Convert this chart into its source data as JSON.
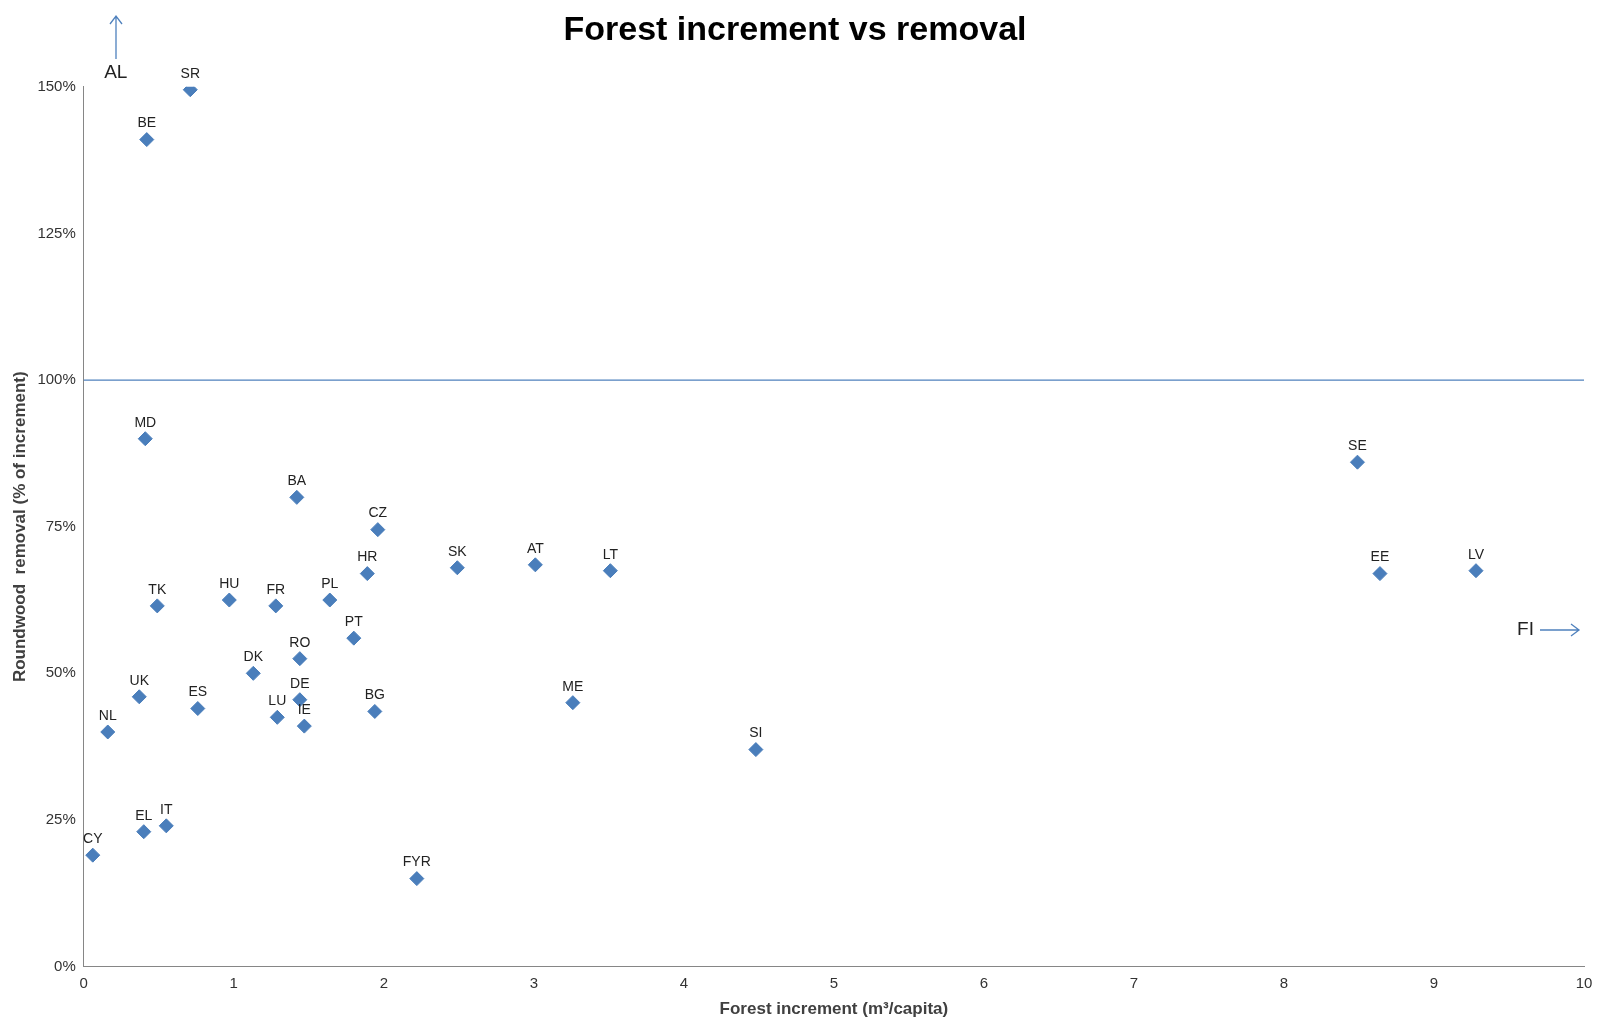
{
  "chart_data": {
    "type": "scatter",
    "title": "Forest increment vs removal",
    "xlabel": "Forest increment (m³/capita)",
    "ylabel": "Roundwood  removal (% of increment)",
    "series": [
      {
        "color": "#4a7ebb",
        "x": [
          0.71,
          0.42,
          0.41,
          1.42,
          1.96,
          1.89,
          2.49,
          3.01,
          3.51,
          0.49,
          0.97,
          1.28,
          1.64,
          1.8,
          1.44,
          1.13,
          1.44,
          0.37,
          0.76,
          1.29,
          1.47,
          1.94,
          0.16,
          3.26,
          4.48,
          0.4,
          0.55,
          0.06,
          2.22,
          8.49,
          8.64,
          9.28
        ],
        "values": [
          149.5,
          141,
          90,
          80,
          74.5,
          67,
          68,
          68.5,
          67.5,
          61.5,
          62.5,
          61.5,
          62.5,
          56,
          52.5,
          50,
          45.5,
          46,
          44,
          42.5,
          41,
          43.5,
          40,
          45,
          37,
          23,
          24,
          19,
          15,
          86,
          67,
          67.5
        ]
      }
    ],
    "annotations": [
      {
        "text": "SR",
        "x": 0.71,
        "y": 149.5
      },
      {
        "text": "BE",
        "x": 0.42,
        "y": 141
      },
      {
        "text": "MD",
        "x": 0.41,
        "y": 90
      },
      {
        "text": "BA",
        "x": 1.42,
        "y": 80
      },
      {
        "text": "CZ",
        "x": 1.96,
        "y": 74.5
      },
      {
        "text": "HR",
        "x": 1.89,
        "y": 67
      },
      {
        "text": "SK",
        "x": 2.49,
        "y": 68
      },
      {
        "text": "AT",
        "x": 3.01,
        "y": 68.5
      },
      {
        "text": "LT",
        "x": 3.51,
        "y": 67.5
      },
      {
        "text": "TK",
        "x": 0.49,
        "y": 61.5
      },
      {
        "text": "HU",
        "x": 0.97,
        "y": 62.5
      },
      {
        "text": "FR",
        "x": 1.28,
        "y": 61.5
      },
      {
        "text": "PL",
        "x": 1.64,
        "y": 62.5
      },
      {
        "text": "PT",
        "x": 1.8,
        "y": 56
      },
      {
        "text": "RO",
        "x": 1.44,
        "y": 52.5
      },
      {
        "text": "DK",
        "x": 1.13,
        "y": 50
      },
      {
        "text": "DE",
        "x": 1.44,
        "y": 45.5
      },
      {
        "text": "UK",
        "x": 0.37,
        "y": 46
      },
      {
        "text": "ES",
        "x": 0.76,
        "y": 44
      },
      {
        "text": "LU",
        "x": 1.29,
        "y": 42.5
      },
      {
        "text": "IE",
        "x": 1.47,
        "y": 41
      },
      {
        "text": "BG",
        "x": 1.94,
        "y": 43.5
      },
      {
        "text": "NL",
        "x": 0.16,
        "y": 40
      },
      {
        "text": "ME",
        "x": 3.26,
        "y": 45
      },
      {
        "text": "SI",
        "x": 4.48,
        "y": 37
      },
      {
        "text": "EL",
        "x": 0.4,
        "y": 23
      },
      {
        "text": "IT",
        "x": 0.55,
        "y": 24
      },
      {
        "text": "CY",
        "x": 0.06,
        "y": 19
      },
      {
        "text": "FYR",
        "x": 2.22,
        "y": 15
      },
      {
        "text": "SE",
        "x": 8.49,
        "y": 86
      },
      {
        "text": "EE",
        "x": 8.64,
        "y": 67
      },
      {
        "text": "LV",
        "x": 9.28,
        "y": 67.5
      },
      "AL",
      "FI"
    ],
    "ref_lines": [
      {
        "axis": "y",
        "value": 100,
        "color": "#4f81bd"
      }
    ],
    "xlim": [
      0,
      10
    ],
    "xticks": [
      0,
      1,
      2,
      3,
      4,
      5,
      6,
      7,
      8,
      9,
      10
    ],
    "ylim": [
      0,
      150
    ],
    "yticks": [
      {
        "value": 0,
        "label": "0%"
      },
      {
        "value": 25,
        "label": "25%"
      },
      {
        "value": 50,
        "label": "50%"
      },
      {
        "value": 75,
        "label": "75%"
      },
      {
        "value": 100,
        "label": "100%"
      },
      {
        "value": 125,
        "label": "125%"
      },
      {
        "value": 150,
        "label": "150%"
      }
    ],
    "grid": false,
    "legend": false,
    "marker": "diamond"
  }
}
